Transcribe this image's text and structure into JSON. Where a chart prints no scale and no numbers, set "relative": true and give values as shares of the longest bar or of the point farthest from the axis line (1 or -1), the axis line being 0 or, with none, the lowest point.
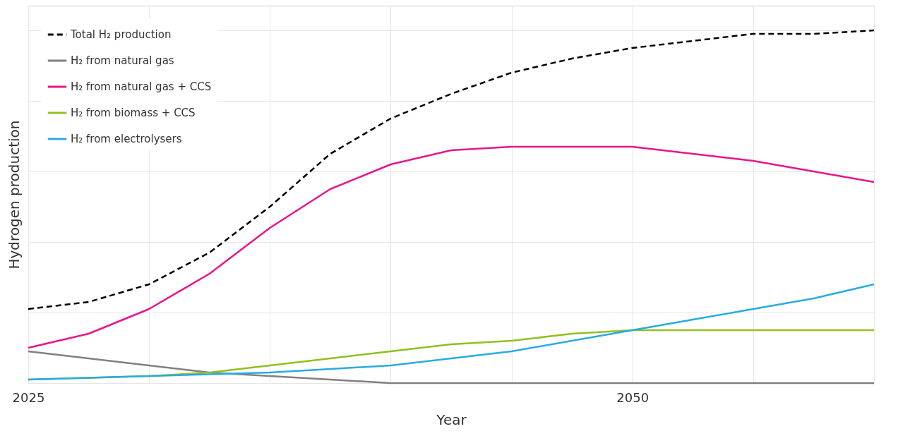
{
  "chart_data": {
    "type": "line",
    "xlabel": "Year",
    "ylabel": "Hydrogen production",
    "relative": true,
    "grid": true,
    "legend": "top left",
    "xlim": [
      2025,
      2060
    ],
    "xticks": [
      2025,
      {
        "value": 2030,
        "label": null
      },
      {
        "value": 2035,
        "label": null
      },
      {
        "value": 2040,
        "label": null
      },
      {
        "value": 2045,
        "label": null
      },
      2050,
      {
        "value": 2055,
        "label": null
      },
      {
        "value": 2060,
        "label": null
      }
    ],
    "series": [
      {
        "name": "Total H₂ production",
        "color": "#000000",
        "line_style": "dashed",
        "x": [
          2025,
          2027.5,
          2030,
          2032.5,
          2035,
          2037.5,
          2040,
          2042.5,
          2045,
          2047.5,
          2050,
          2052.5,
          2055,
          2057.5,
          2060
        ],
        "values": [
          0.21,
          0.23,
          0.28,
          0.37,
          0.5,
          0.65,
          0.75,
          0.82,
          0.88,
          0.92,
          0.95,
          0.97,
          0.99,
          0.99,
          1
        ]
      },
      {
        "name": "H₂ from natural gas",
        "color": "#808080",
        "x": [
          2025,
          2027.5,
          2030,
          2032.5,
          2035,
          2037.5,
          2040,
          2045,
          2050,
          2055,
          2060
        ],
        "values": [
          0.09,
          0.07,
          0.05,
          0.03,
          0.02,
          0.01,
          0,
          0,
          0,
          0,
          0
        ]
      },
      {
        "name": "H₂ from natural gas + CCS",
        "color": "#e8168b",
        "x": [
          2025,
          2027.5,
          2030,
          2032.5,
          2035,
          2037.5,
          2040,
          2042.5,
          2045,
          2047.5,
          2050,
          2052.5,
          2055,
          2057.5,
          2060
        ],
        "values": [
          0.1,
          0.14,
          0.21,
          0.31,
          0.44,
          0.55,
          0.62,
          0.66,
          0.67,
          0.67,
          0.67,
          0.65,
          0.63,
          0.6,
          0.57
        ]
      },
      {
        "name": "H₂ from biomass + CCS",
        "color": "#92c01f",
        "x": [
          2025,
          2030,
          2032.5,
          2035,
          2037.5,
          2040,
          2042.5,
          2045,
          2047.5,
          2050,
          2052.5,
          2055,
          2060
        ],
        "values": [
          0.01,
          0.02,
          0.03,
          0.05,
          0.07,
          0.09,
          0.11,
          0.12,
          0.14,
          0.15,
          0.15,
          0.15,
          0.15
        ]
      },
      {
        "name": "H₂ from electrolysers",
        "color": "#29abe2",
        "x": [
          2025,
          2030,
          2035,
          2037.5,
          2040,
          2042.5,
          2045,
          2047.5,
          2050,
          2052.5,
          2055,
          2057.5,
          2060
        ],
        "values": [
          0.01,
          0.02,
          0.03,
          0.04,
          0.05,
          0.07,
          0.09,
          0.12,
          0.15,
          0.18,
          0.21,
          0.24,
          0.28
        ]
      }
    ]
  }
}
